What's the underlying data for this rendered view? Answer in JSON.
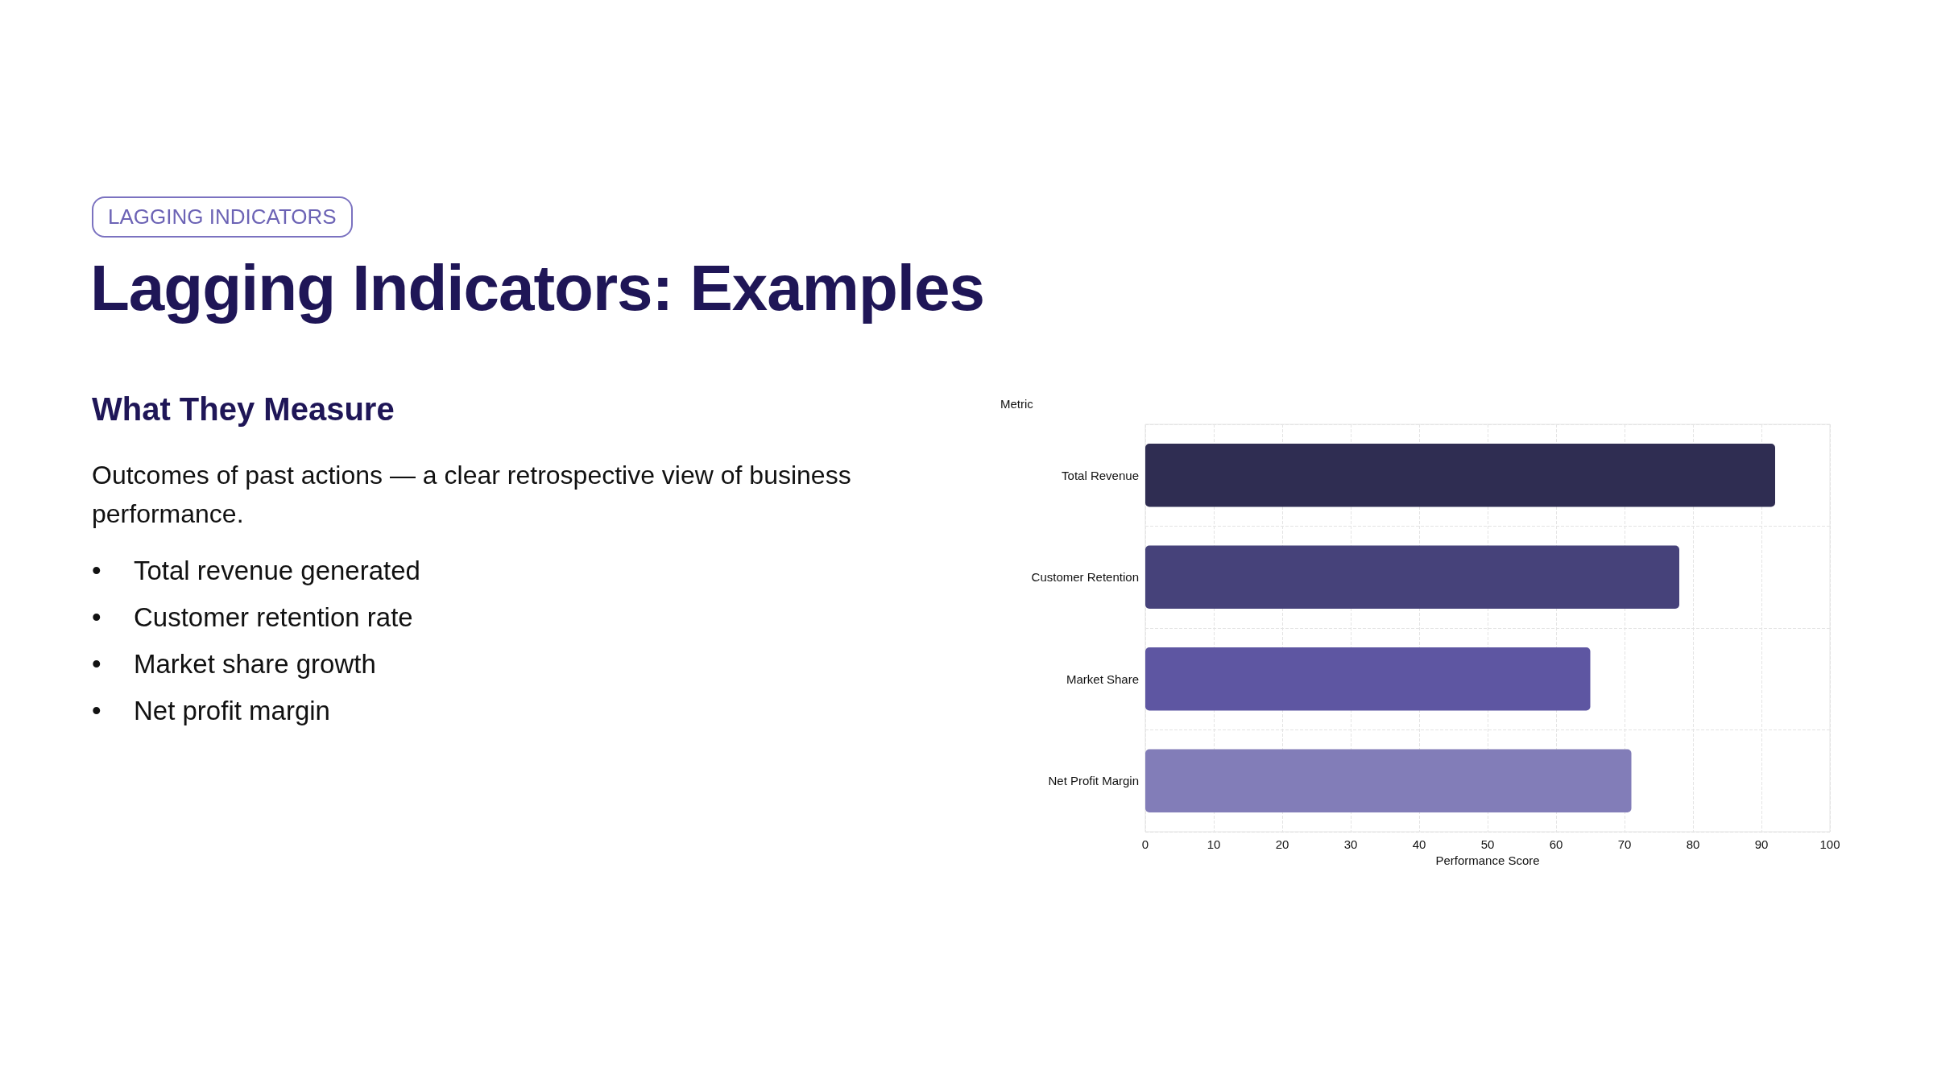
{
  "chart_data": {
    "type": "bar",
    "orientation": "horizontal",
    "title": "Lagging Indicators: Examples",
    "annotations": [
      "LAGGING INDICATORS",
      "What They Measure",
      "Outcomes of past actions — a clear retrospective view of business performance.",
      "• Total revenue generated",
      "• Customer retention rate",
      "• Market share growth",
      "• Net profit margin"
    ],
    "ylabel": "Metric",
    "xlabel": "Performance Score",
    "categories": [
      "Total Revenue",
      "Customer Retention",
      "Market Share",
      "Net Profit Margin"
    ],
    "values": [
      92,
      78,
      65,
      71
    ],
    "colors": [
      "#2f2d52",
      "#46427a",
      "#5e56a2",
      "#827db8"
    ],
    "xlim": [
      0,
      100
    ],
    "xticks": [
      0,
      10,
      20,
      30,
      40,
      50,
      60,
      70,
      80,
      90,
      100
    ],
    "grid": true
  }
}
